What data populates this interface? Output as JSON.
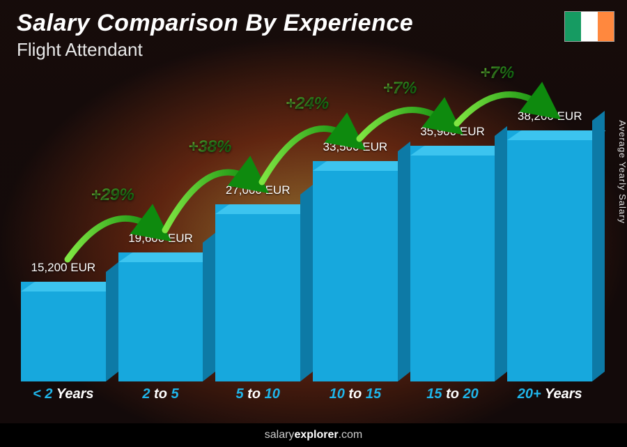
{
  "title": "Salary Comparison By Experience",
  "subtitle": "Flight Attendant",
  "y_axis_label": "Average Yearly Salary",
  "footer_prefix": "salary",
  "footer_bold": "explorer",
  "footer_suffix": ".com",
  "flag_colors": [
    "#169b62",
    "#ffffff",
    "#ff883e"
  ],
  "chart": {
    "type": "bar",
    "max_value": 40000,
    "bar_color_front": "#17a8dd",
    "bar_color_top": "#3cc4ef",
    "bar_color_side": "#0d7aa6",
    "pct_gradient_start": "#7fe642",
    "pct_gradient_end": "#1aa61a",
    "arc_gradient_start": "#7fe642",
    "arc_gradient_end": "#0e8a0e",
    "label_blue": "#1fb5ea",
    "bars": [
      {
        "category_pre": "< 2",
        "category_post": " Years",
        "value": 15200,
        "value_label": "15,200 EUR"
      },
      {
        "category_pre": "2",
        "category_mid": " to ",
        "category_post": "5",
        "value": 19600,
        "value_label": "19,600 EUR",
        "pct": "+29%"
      },
      {
        "category_pre": "5",
        "category_mid": " to ",
        "category_post": "10",
        "value": 27000,
        "value_label": "27,000 EUR",
        "pct": "+38%"
      },
      {
        "category_pre": "10",
        "category_mid": " to ",
        "category_post": "15",
        "value": 33500,
        "value_label": "33,500 EUR",
        "pct": "+24%"
      },
      {
        "category_pre": "15",
        "category_mid": " to ",
        "category_post": "20",
        "value": 35900,
        "value_label": "35,900 EUR",
        "pct": "+7%"
      },
      {
        "category_pre": "20+",
        "category_post": " Years",
        "value": 38200,
        "value_label": "38,200 EUR",
        "pct": "+7%"
      }
    ]
  }
}
